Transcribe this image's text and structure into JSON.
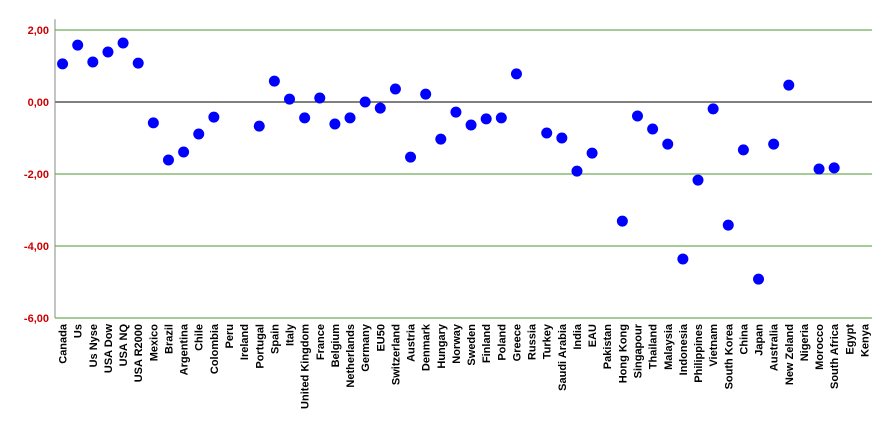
{
  "chart_data": {
    "type": "dot",
    "categories": [
      "Canada",
      "Us",
      "Us Nyse",
      "USA Dow",
      "USA NQ",
      "USA R2000",
      "Mexico",
      "Brazil",
      "Argentina",
      "Chile",
      "Colombia",
      "Peru",
      "Ireland",
      "Portugal",
      "Spain",
      "Italy",
      "United Kingdom",
      "France",
      "Belgium",
      "Netherlands",
      "Germany",
      "EU50",
      "Switzerland",
      "Austria",
      "Denmark",
      "Hungary",
      "Norway",
      "Sweden",
      "Finland",
      "Poland",
      "Greece",
      "Russia",
      "Turkey",
      "Saudi Arabia",
      "India",
      "EAU",
      "Pakistan",
      "Hong Kong",
      "Singapour",
      "Thailand",
      "Malaysia",
      "Indonesia",
      "Philippines",
      "Vietnam",
      "South Korea",
      "China",
      "Japan",
      "Australia",
      "New Zeland",
      "Nigeria",
      "Morocco",
      "South Africa",
      "Egypt",
      "Kenya"
    ],
    "values": [
      1.06,
      1.58,
      1.11,
      1.39,
      1.64,
      1.08,
      -0.58,
      -1.61,
      -1.39,
      -0.89,
      -0.42,
      null,
      null,
      -0.67,
      0.58,
      0.08,
      -0.44,
      0.11,
      -0.61,
      -0.44,
      0,
      -0.17,
      0.36,
      -1.53,
      0.22,
      -1.03,
      -0.28,
      -0.64,
      -0.47,
      -0.44,
      0.78,
      null,
      -0.86,
      -1.0,
      -1.92,
      -1.42,
      null,
      -3.31,
      -0.39,
      -0.75,
      -1.17,
      -4.36,
      -2.17,
      -0.19,
      -3.42,
      -1.33,
      -4.92,
      -1.17,
      0.47,
      null,
      -1.86,
      -1.83,
      null,
      null
    ],
    "color": "#0000ff",
    "ylim": [
      -6,
      2.3
    ],
    "yticks": [
      {
        "value": 2,
        "label": "2,00"
      },
      {
        "value": 0,
        "label": "0,00"
      },
      {
        "value": -2,
        "label": "-2,00"
      },
      {
        "value": -4,
        "label": "-4,00"
      },
      {
        "value": -6,
        "label": "-6,00"
      }
    ],
    "grid": true,
    "grid_color": "#4a9a2a",
    "tick_label_color": "#cc0000"
  }
}
